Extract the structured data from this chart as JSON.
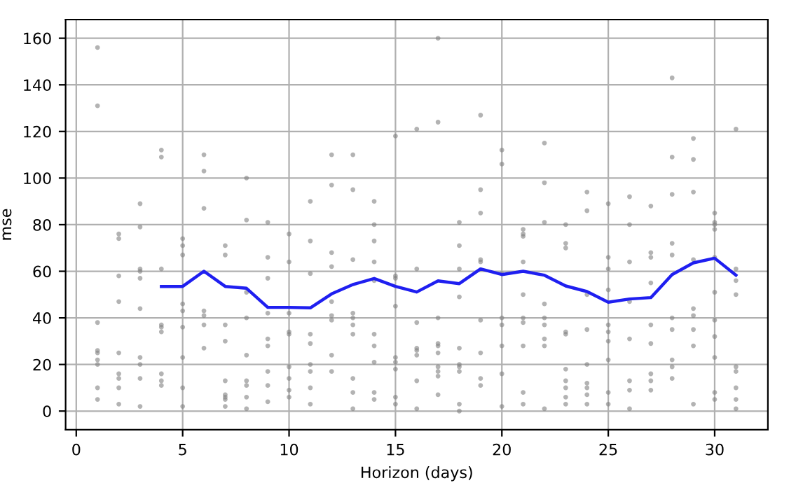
{
  "chart_data": {
    "type": "scatter",
    "xlabel": "Horizon (days)",
    "ylabel": "mse",
    "xlim": [
      -0.5,
      32.5
    ],
    "ylim": [
      -8,
      168
    ],
    "xticks": [
      0,
      5,
      10,
      15,
      20,
      25,
      30
    ],
    "yticks": [
      0,
      20,
      40,
      60,
      80,
      100,
      120,
      140,
      160
    ],
    "grid": true,
    "series": [
      {
        "color": "#808080",
        "marker": "circle",
        "x": [
          1,
          1,
          1,
          1,
          1,
          1,
          1,
          1,
          1,
          2,
          2,
          2,
          2,
          2,
          2,
          2,
          2,
          2,
          3,
          3,
          3,
          3,
          3,
          3,
          3,
          3,
          3,
          3,
          4,
          4,
          4,
          4,
          4,
          4,
          4,
          4,
          4,
          5,
          5,
          5,
          5,
          5,
          5,
          5,
          5,
          5,
          6,
          6,
          6,
          6,
          6,
          6,
          6,
          7,
          7,
          7,
          7,
          7,
          7,
          7,
          7,
          7,
          8,
          8,
          8,
          8,
          8,
          8,
          8,
          8,
          8,
          9,
          9,
          9,
          9,
          9,
          9,
          9,
          9,
          9,
          10,
          10,
          10,
          10,
          10,
          10,
          10,
          10,
          10,
          11,
          11,
          11,
          11,
          11,
          11,
          11,
          11,
          11,
          12,
          12,
          12,
          12,
          12,
          12,
          12,
          12,
          12,
          13,
          13,
          13,
          13,
          13,
          13,
          13,
          13,
          13,
          13,
          14,
          14,
          14,
          14,
          14,
          14,
          14,
          14,
          14,
          14,
          15,
          15,
          15,
          15,
          15,
          15,
          15,
          15,
          15,
          16,
          16,
          16,
          16,
          16,
          16,
          16,
          16,
          17,
          17,
          17,
          17,
          17,
          17,
          17,
          17,
          17,
          17,
          18,
          18,
          18,
          18,
          18,
          18,
          18,
          18,
          18,
          18,
          19,
          19,
          19,
          19,
          19,
          19,
          19,
          19,
          19,
          20,
          20,
          20,
          20,
          20,
          20,
          20,
          20,
          21,
          21,
          21,
          21,
          21,
          21,
          21,
          21,
          21,
          21,
          22,
          22,
          22,
          22,
          22,
          22,
          22,
          22,
          22,
          23,
          23,
          23,
          23,
          23,
          23,
          23,
          23,
          23,
          23,
          24,
          24,
          24,
          24,
          24,
          24,
          24,
          24,
          24,
          25,
          25,
          25,
          25,
          25,
          25,
          25,
          25,
          25,
          25,
          26,
          26,
          26,
          26,
          26,
          26,
          26,
          26,
          27,
          27,
          27,
          27,
          27,
          27,
          27,
          27,
          27,
          28,
          28,
          28,
          28,
          28,
          28,
          28,
          28,
          28,
          28,
          29,
          29,
          29,
          29,
          29,
          29,
          29,
          29,
          29,
          30,
          30,
          30,
          30,
          30,
          30,
          30,
          30,
          30,
          30,
          30,
          31,
          31,
          31,
          31,
          31,
          31,
          31,
          31,
          31
        ],
        "values": [
          156,
          131,
          38,
          26,
          25,
          22,
          20,
          10,
          5,
          76,
          74,
          58,
          47,
          25,
          16,
          14,
          10,
          3,
          89,
          79,
          61,
          60,
          57,
          44,
          23,
          20,
          14,
          2,
          112,
          109,
          61,
          37,
          36,
          34,
          16,
          13,
          11,
          74,
          71,
          67,
          46,
          43,
          36,
          23,
          10,
          2,
          110,
          103,
          87,
          43,
          41,
          37,
          27,
          71,
          67,
          37,
          30,
          13,
          7,
          6,
          5,
          2,
          100,
          82,
          51,
          40,
          24,
          13,
          11,
          6,
          1,
          81,
          66,
          57,
          42,
          31,
          28,
          17,
          11,
          4,
          76,
          64,
          42,
          34,
          33,
          19,
          14,
          9,
          6,
          90,
          73,
          59,
          33,
          29,
          20,
          17,
          10,
          3,
          110,
          97,
          68,
          62,
          47,
          41,
          39,
          24,
          17,
          110,
          95,
          65,
          42,
          40,
          37,
          33,
          14,
          8,
          1,
          90,
          80,
          73,
          64,
          56,
          33,
          28,
          21,
          8,
          5,
          118,
          58,
          57,
          45,
          23,
          21,
          18,
          6,
          3,
          121,
          61,
          38,
          27,
          26,
          24,
          13,
          1,
          160,
          124,
          40,
          29,
          28,
          25,
          19,
          17,
          15,
          7,
          81,
          71,
          61,
          49,
          27,
          20,
          19,
          17,
          3,
          0,
          127,
          95,
          85,
          65,
          64,
          39,
          25,
          14,
          11,
          112,
          106,
          59,
          40,
          37,
          28,
          16,
          2,
          78,
          76,
          75,
          64,
          50,
          40,
          38,
          28,
          8,
          3,
          115,
          98,
          81,
          46,
          40,
          37,
          31,
          28,
          1,
          80,
          72,
          70,
          34,
          33,
          18,
          13,
          10,
          6,
          3,
          94,
          86,
          50,
          35,
          20,
          12,
          10,
          7,
          3,
          89,
          66,
          61,
          52,
          37,
          34,
          30,
          22,
          8,
          3,
          92,
          80,
          64,
          47,
          31,
          13,
          9,
          1,
          88,
          68,
          66,
          55,
          37,
          29,
          16,
          13,
          9,
          143,
          109,
          93,
          72,
          67,
          40,
          35,
          22,
          19,
          14,
          117,
          108,
          94,
          65,
          44,
          41,
          35,
          28,
          3,
          85,
          81,
          80,
          78,
          66,
          51,
          39,
          32,
          23,
          8,
          5,
          121,
          61,
          56,
          50,
          19,
          17,
          10,
          5,
          1
        ]
      },
      {
        "type": "line",
        "color": "#1f1ff0",
        "marker": "none",
        "line_style": "solid",
        "x": [
          4,
          5,
          6,
          7,
          8,
          9,
          10,
          11,
          12,
          13,
          14,
          15,
          16,
          17,
          18,
          19,
          20,
          21,
          22,
          23,
          24,
          25,
          26,
          27,
          28,
          29,
          30,
          31
        ],
        "values": [
          53.5,
          53.5,
          60,
          53.5,
          52.7,
          44.5,
          44.5,
          44.3,
          50.3,
          54.3,
          56.9,
          53.5,
          51.1,
          55.9,
          54.7,
          61,
          58.6,
          60,
          58.3,
          53.7,
          51.3,
          46.7,
          48.1,
          48.7,
          58.6,
          63.6,
          65.6,
          58.3
        ]
      }
    ]
  }
}
